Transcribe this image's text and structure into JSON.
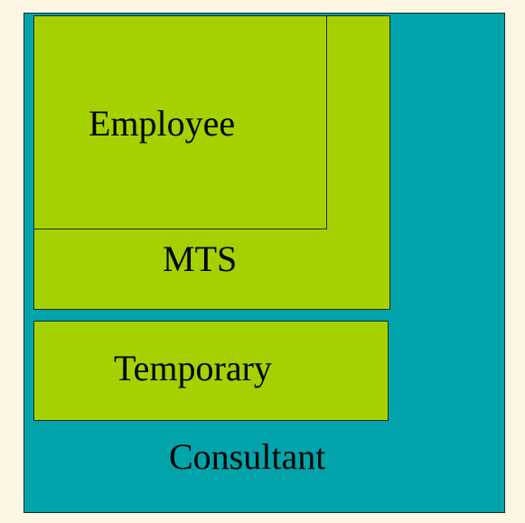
{
  "diagram": {
    "consultant": {
      "label": "Consultant",
      "color": "#00a4aa"
    },
    "mts": {
      "label": "MTS",
      "color": "#a6d100"
    },
    "employee": {
      "label": "Employee",
      "color": "#a6d100"
    },
    "temporary": {
      "label": "Temporary",
      "color": "#a6d100"
    },
    "background_color": "#fdf6e3"
  }
}
